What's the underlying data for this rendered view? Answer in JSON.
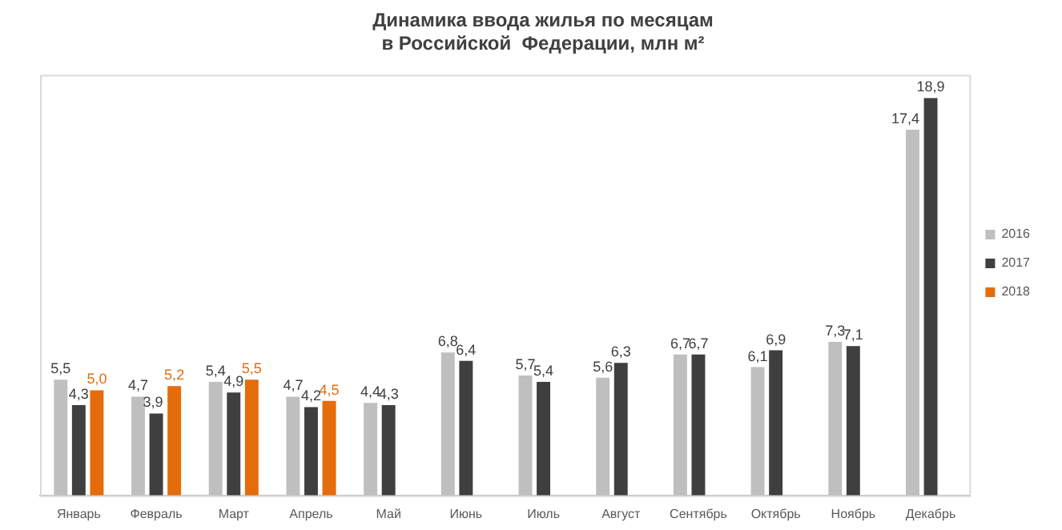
{
  "chart_data": {
    "type": "bar",
    "title": "Динамика ввода жилья по месяцам\nв Российской  Федерации, млн м²",
    "categories": [
      "Январь",
      "Февраль",
      "Март",
      "Апрель",
      "Май",
      "Июнь",
      "Июль",
      "Август",
      "Сентябрь",
      "Октябрь",
      "Ноябрь",
      "Декабрь"
    ],
    "series": [
      {
        "name": "2016",
        "color": "#bfbfbf",
        "values": [
          5.5,
          4.7,
          5.4,
          4.7,
          4.4,
          6.8,
          5.7,
          5.6,
          6.7,
          6.1,
          7.3,
          17.4
        ],
        "value_labels": [
          "5,5",
          "4,7",
          "5,4",
          "4,7",
          "4,4",
          "6,8",
          "5,7",
          "5,6",
          "6,7",
          "6,1",
          "7,3",
          "17,4"
        ]
      },
      {
        "name": "2017",
        "color": "#3f3f3f",
        "values": [
          4.3,
          3.9,
          4.9,
          4.2,
          4.3,
          6.4,
          5.4,
          6.3,
          6.7,
          6.9,
          7.1,
          18.9
        ],
        "value_labels": [
          "4,3",
          "3,9",
          "4,9",
          "4,2",
          "4,3",
          "6,4",
          "5,4",
          "6,3",
          "6,7",
          "6,9",
          "7,1",
          "18,9"
        ]
      },
      {
        "name": "2018",
        "color": "#e46c0a",
        "values": [
          5.0,
          5.2,
          5.5,
          4.5,
          null,
          null,
          null,
          null,
          null,
          null,
          null,
          null
        ],
        "value_labels": [
          "5,0",
          "5,2",
          "5,5",
          "4,5",
          null,
          null,
          null,
          null,
          null,
          null,
          null,
          null
        ]
      }
    ],
    "legend": "right",
    "grid": false
  }
}
